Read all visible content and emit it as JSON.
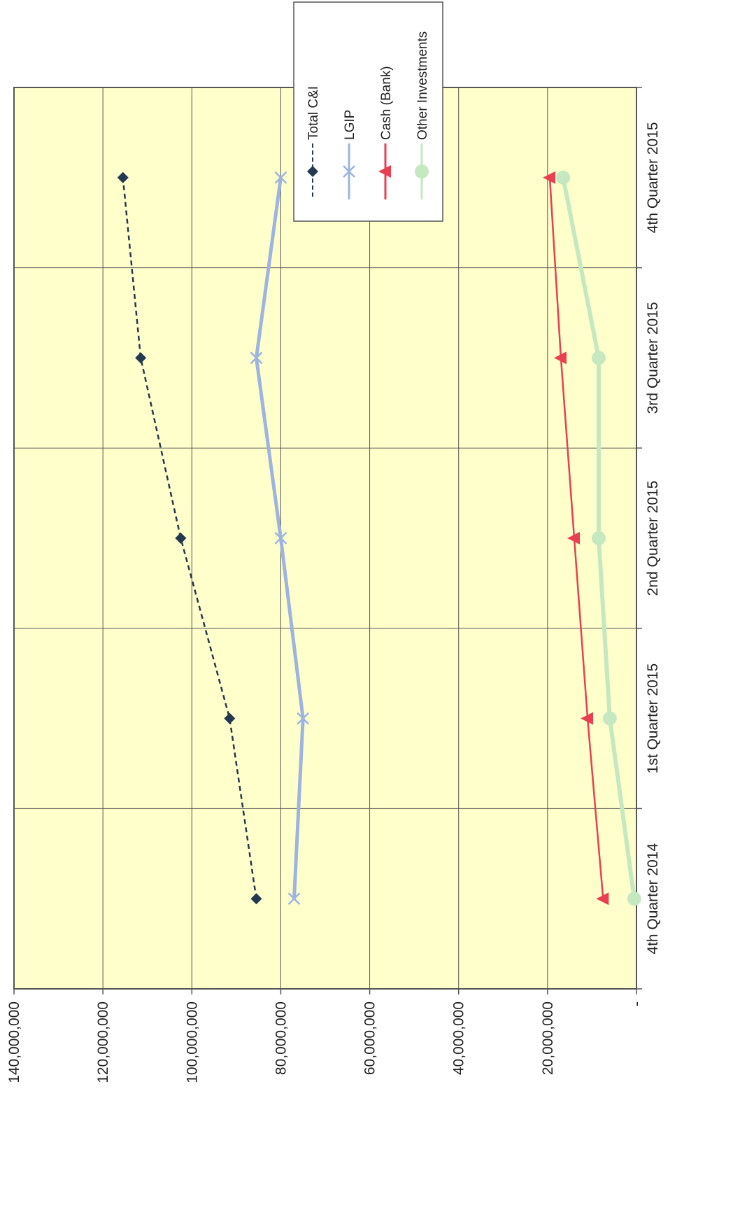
{
  "chart_data": {
    "type": "line",
    "orientation": "rotated-90-counterclockwise",
    "categories": [
      "4th Quarter 2014",
      "1st Quarter 2015",
      "2nd Quarter 2015",
      "3rd Quarter 2015",
      "4th Quarter 2015"
    ],
    "y_ticks": [
      "-",
      "20,000,000",
      "40,000,000",
      "60,000,000",
      "80,000,000",
      "100,000,000",
      "120,000,000",
      "140,000,000"
    ],
    "ylim": [
      0,
      140000000
    ],
    "grid": true,
    "plot_background": "#ffffcc",
    "legend_placement": "top-right",
    "series": [
      {
        "name": "Total C&I",
        "color": "#243850",
        "marker": "diamond",
        "dash": "dashed",
        "values": [
          85500000,
          91500000,
          102500000,
          111500000,
          115500000
        ]
      },
      {
        "name": "LGIP",
        "color": "#9db4e0",
        "marker": "x",
        "dash": "solid",
        "values": [
          77000000,
          75000000,
          80000000,
          85500000,
          80000000
        ]
      },
      {
        "name": "Cash (Bank)",
        "color": "#e84050",
        "marker": "triangle",
        "dash": "solid",
        "values": [
          7500000,
          11000000,
          14000000,
          17000000,
          19500000
        ]
      },
      {
        "name": "Other Investments",
        "color": "#c6e8c0",
        "marker": "circle",
        "dash": "solid",
        "values": [
          500000,
          6000000,
          8500000,
          8500000,
          16500000
        ]
      }
    ]
  }
}
